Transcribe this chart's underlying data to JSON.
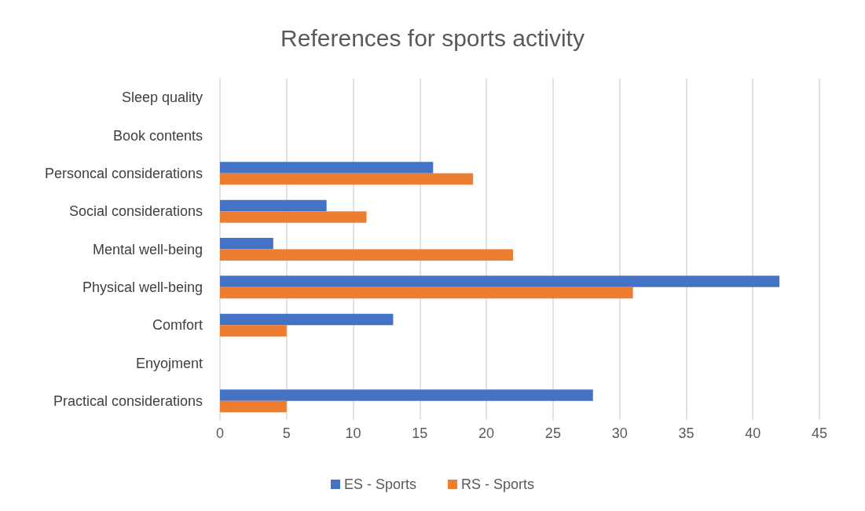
{
  "chart_data": {
    "type": "bar",
    "orientation": "horizontal",
    "title": "References for sports activity",
    "categories": [
      "Sleep quality",
      "Book contents",
      "Personcal considerations",
      "Social considerations",
      "Mental well-being",
      "Physical well-being",
      "Comfort",
      "Enyojment",
      "Practical considerations"
    ],
    "series": [
      {
        "name": "ES - Sports",
        "color": "#4472c4",
        "values": [
          0,
          0,
          16,
          8,
          4,
          42,
          13,
          0,
          28
        ]
      },
      {
        "name": "RS - Sports",
        "color": "#ed7d31",
        "values": [
          0,
          0,
          19,
          11,
          22,
          31,
          5,
          0,
          5
        ]
      }
    ],
    "xlim": [
      0,
      45
    ],
    "xticks": [
      0,
      5,
      10,
      15,
      20,
      25,
      30,
      35,
      40,
      45
    ],
    "grid": "x",
    "legend": "bottom"
  }
}
